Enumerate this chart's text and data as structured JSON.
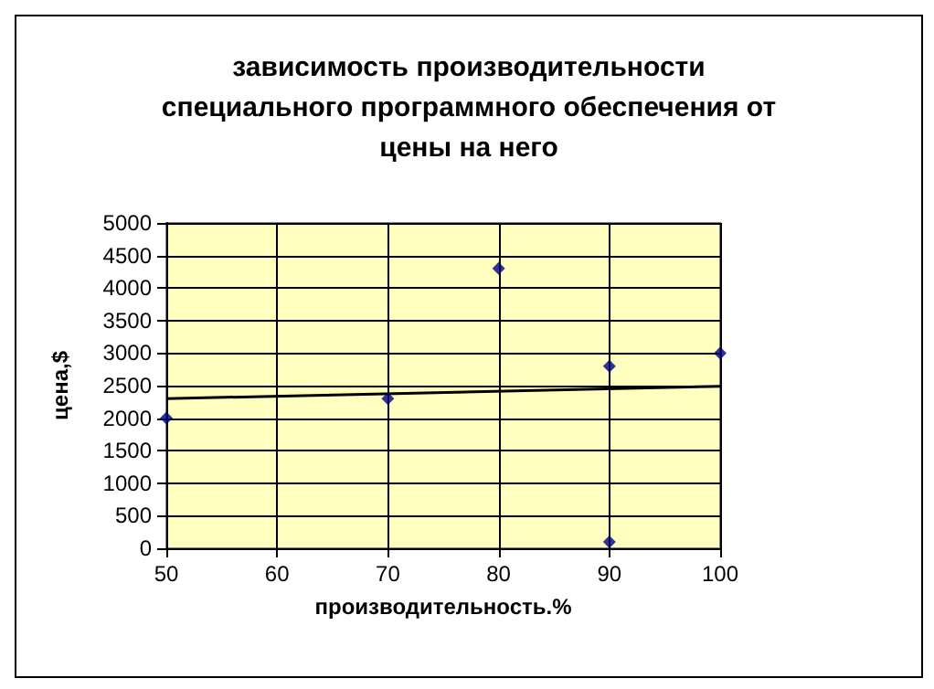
{
  "chart_data": {
    "type": "scatter",
    "title": "зависимость производительности\nспециального программного обеспечения от\nцены на него",
    "xlabel": "производительность.%",
    "ylabel": "цена,$",
    "xlim": [
      50,
      100
    ],
    "xticks": [
      50,
      60,
      70,
      80,
      90,
      100
    ],
    "ylim": [
      0,
      5000
    ],
    "yticks": [
      0,
      500,
      1000,
      1500,
      2000,
      2500,
      3000,
      3500,
      4000,
      4500,
      5000
    ],
    "grid": true,
    "marker": "diamond",
    "series": [
      {
        "type": "scatter",
        "color": "#000080",
        "x": [
          50,
          70,
          80,
          90,
          90,
          100
        ],
        "values": [
          2000,
          2300,
          4300,
          2800,
          100,
          3000
        ]
      },
      {
        "type": "line",
        "color": "#000000",
        "marker": "none",
        "line_style": "solid",
        "x": [
          50,
          100
        ],
        "values": [
          2300,
          2490
        ]
      }
    ]
  }
}
